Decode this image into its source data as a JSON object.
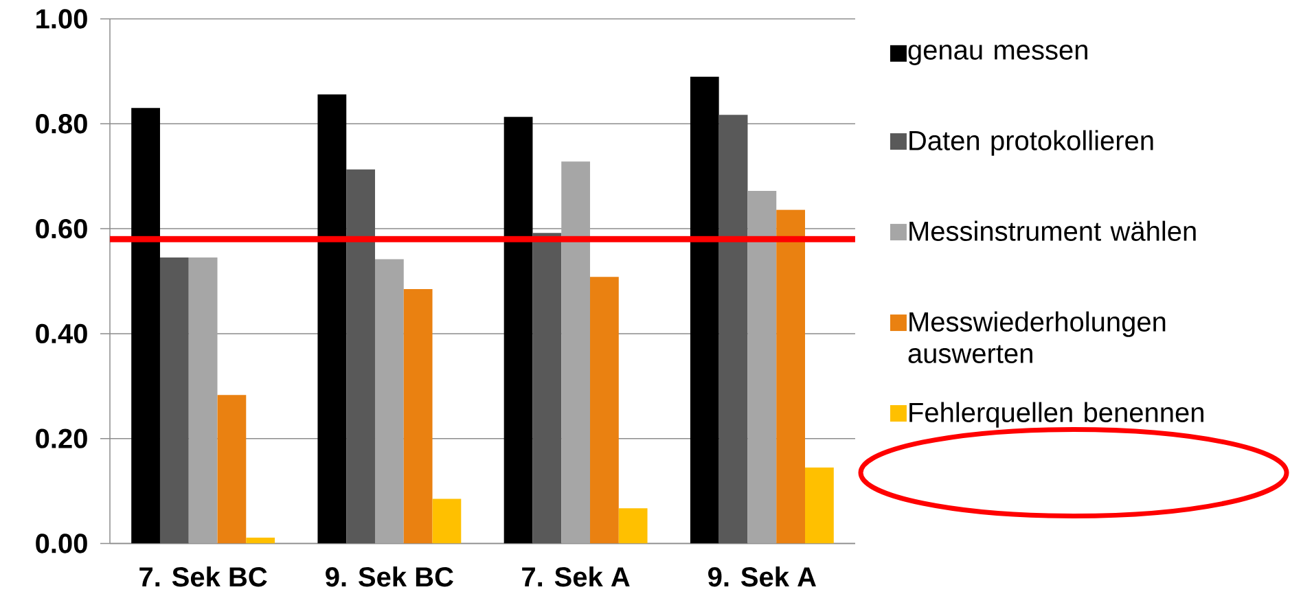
{
  "chart_data": {
    "type": "bar",
    "categories": [
      "7. Sek BC",
      "9. Sek BC",
      "7. Sek A",
      "9. Sek A"
    ],
    "series": [
      {
        "name": "genau messen",
        "color": "#000000",
        "values": [
          0.83,
          0.856,
          0.813,
          0.89
        ]
      },
      {
        "name": "Daten protokollieren",
        "color": "#595959",
        "values": [
          0.545,
          0.713,
          0.592,
          0.817
        ]
      },
      {
        "name": "Messinstrument wählen",
        "color": "#a6a6a6",
        "values": [
          0.545,
          0.542,
          0.728,
          0.672
        ]
      },
      {
        "name": "Messwiederholungen auswerten",
        "color": "#ea8111",
        "values": [
          0.283,
          0.485,
          0.508,
          0.636
        ]
      },
      {
        "name": "Fehlerquellen benennen",
        "color": "#ffc000",
        "values": [
          0.011,
          0.085,
          0.067,
          0.145
        ]
      }
    ],
    "ylim": [
      0,
      1
    ],
    "yticks": [
      {
        "value": 0,
        "label": "0.00"
      },
      {
        "value": 0.2,
        "label": "0.20"
      },
      {
        "value": 0.4,
        "label": "0.40"
      },
      {
        "value": 0.6,
        "label": "0.60"
      },
      {
        "value": 0.8,
        "label": "0.80"
      },
      {
        "value": 1,
        "label": "1.00"
      }
    ],
    "ref_lines": [
      {
        "axis": "y",
        "value": 0.58,
        "color": "#ff0000"
      }
    ],
    "grid": "y",
    "legend": "right"
  }
}
